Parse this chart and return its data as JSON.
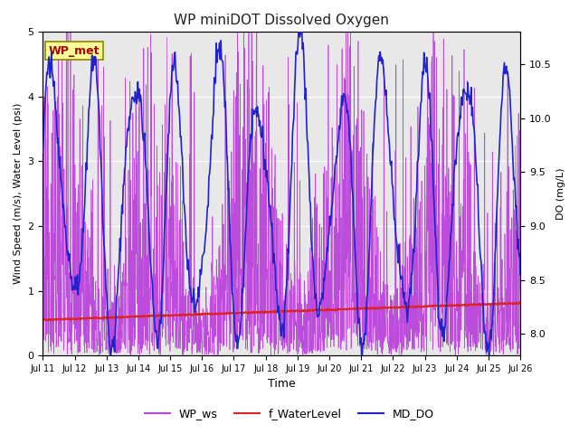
{
  "title": "WP miniDOT Dissolved Oxygen",
  "xlabel": "Time",
  "ylabel_left": "Wind Speed (m/s), Water Level (psi)",
  "ylabel_right": "DO (mg/L)",
  "annotation_text": "WP_met",
  "annotation_color": "#aa0000",
  "annotation_bg": "#ffff99",
  "annotation_border": "#888800",
  "ylim_left": [
    0.0,
    5.0
  ],
  "ylim_right": [
    7.8,
    10.8
  ],
  "fig_bg_color": "#ffffff",
  "plot_bg_color": "#e8e8e8",
  "line_colors": {
    "WP_ws": "#bb44dd",
    "f_WaterLevel": "#dd2222",
    "MD_DO": "#2222cc"
  },
  "xtick_labels": [
    "Jul 11",
    "Jul 12",
    "Jul 13",
    "Jul 14",
    "Jul 15",
    "Jul 16",
    "Jul 17",
    "Jul 18",
    "Jul 19",
    "Jul 20",
    "Jul 21",
    "Jul 22",
    "Jul 23",
    "Jul 24",
    "Jul 25",
    "Jul 26"
  ],
  "n_days": 15,
  "seed": 42
}
